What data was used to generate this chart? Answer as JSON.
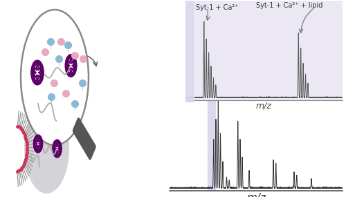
{
  "bg_color": "#ffffff",
  "inset_bg_color": "#ebe8f4",
  "label_syt1_ca2": "Syt-1 + Ca²⁺",
  "label_syt1_ca2_lipid": "Syt-1 + Ca²⁺ + lipid",
  "xlabel_main": "m/z",
  "xlabel_inset": "m/z",
  "main_spectrum_color": "#333333",
  "inset_spectrum_color": "#555555",
  "highlight_rect_color": "#ddd8ee",
  "arrow_color": "#666666",
  "membrane_color": "#888888",
  "circle_edge_color": "#888888",
  "protein_color": "#5c0066",
  "dot_blue_color": "#8bb8d4",
  "dot_pink_color": "#e8a8c0",
  "linker_color": "#bbbbbb",
  "magnifier_color": "#555555",
  "small_circle_color": "#d4d4d8"
}
